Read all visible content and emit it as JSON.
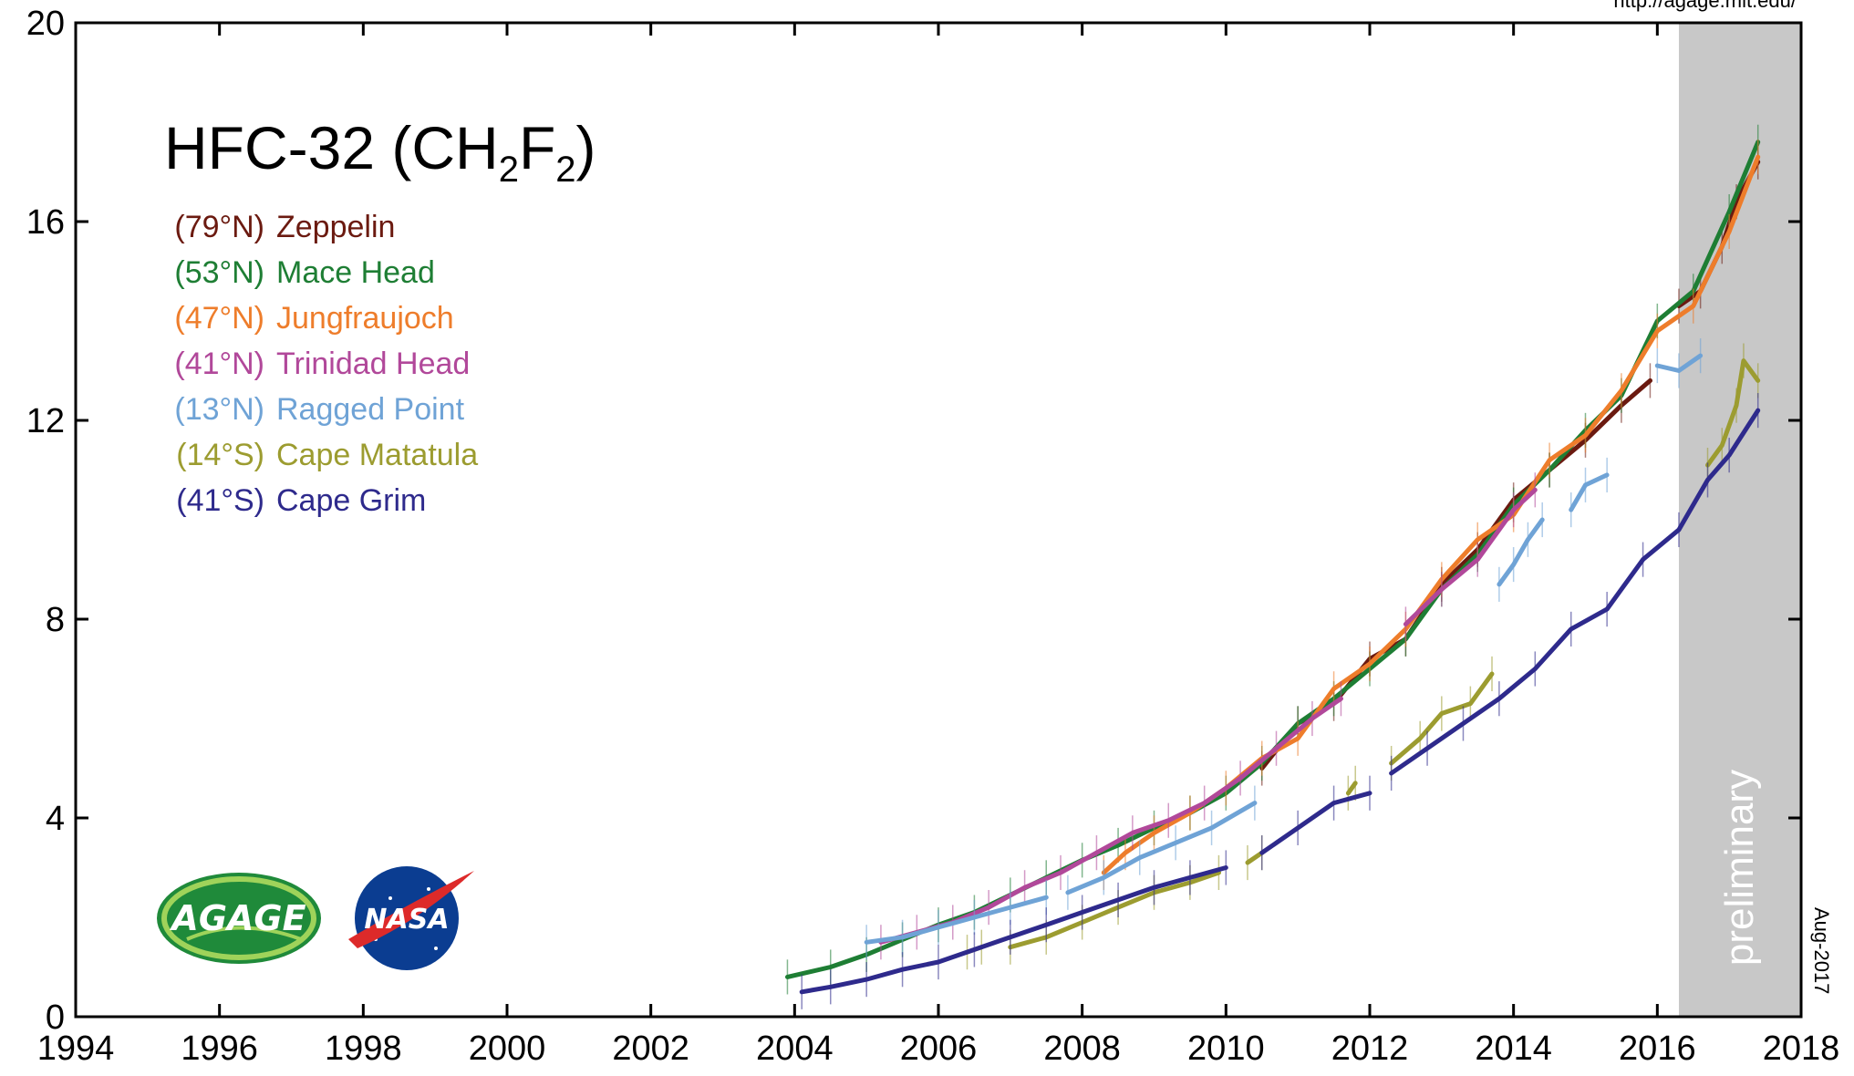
{
  "chart_data": {
    "type": "line",
    "title_main": "HFC-32 (CH",
    "title_sub1": "2",
    "title_mid": "F",
    "title_sub2": "2",
    "title_end": ")",
    "xlabel": "",
    "ylabel": "",
    "xlim": [
      1994,
      2018
    ],
    "ylim": [
      0,
      20
    ],
    "xticks": [
      "1994",
      "1996",
      "1998",
      "2000",
      "2002",
      "2004",
      "2006",
      "2008",
      "2010",
      "2012",
      "2014",
      "2016",
      "2018"
    ],
    "yticks": [
      "0",
      "4",
      "8",
      "12",
      "16",
      "20"
    ],
    "grid": false,
    "preliminary_region": {
      "label": "preliminary",
      "x_start": 2016.3,
      "x_end": 2018
    },
    "url_text": "http://agage.mit.edu/",
    "date_stamp": "Aug-2017",
    "legend_placement": "top-left",
    "series": [
      {
        "lat": "(79°N)",
        "name": "Zeppelin",
        "color": "#6b1a10",
        "points": [
          [
            2010.5,
            5.0
          ],
          [
            2011.0,
            5.9
          ],
          [
            2011.5,
            6.3
          ],
          [
            2012.0,
            7.2
          ],
          [
            2012.5,
            7.6
          ],
          [
            2013.0,
            8.7
          ],
          [
            2013.5,
            9.4
          ],
          [
            2014.0,
            10.4
          ],
          [
            2014.5,
            11.0
          ],
          [
            2015.0,
            11.6
          ],
          [
            2015.5,
            12.3
          ],
          [
            2015.9,
            12.8
          ]
        ]
      },
      {
        "lat": "(79°N)",
        "name": "Zeppelin",
        "color": "#6b1a10",
        "points": [
          [
            2016.3,
            14.3
          ],
          [
            2016.6,
            14.6
          ],
          [
            2016.9,
            15.5
          ],
          [
            2017.1,
            16.4
          ],
          [
            2017.4,
            17.2
          ]
        ]
      },
      {
        "lat": "(53°N)",
        "name": "Mace Head",
        "color": "#1e7e34",
        "points": [
          [
            2003.9,
            0.8
          ],
          [
            2004.5,
            1.0
          ],
          [
            2005.0,
            1.25
          ],
          [
            2005.5,
            1.55
          ],
          [
            2006.0,
            1.85
          ],
          [
            2006.5,
            2.1
          ],
          [
            2007.0,
            2.45
          ],
          [
            2007.5,
            2.8
          ],
          [
            2008.0,
            3.15
          ],
          [
            2008.5,
            3.45
          ],
          [
            2009.0,
            3.8
          ],
          [
            2009.5,
            4.1
          ],
          [
            2010.0,
            4.5
          ],
          [
            2010.5,
            5.1
          ],
          [
            2011.0,
            5.9
          ],
          [
            2011.5,
            6.4
          ],
          [
            2012.0,
            7.0
          ],
          [
            2012.5,
            7.6
          ],
          [
            2013.0,
            8.6
          ],
          [
            2013.5,
            9.3
          ],
          [
            2014.0,
            10.3
          ],
          [
            2014.5,
            11.0
          ],
          [
            2015.0,
            11.8
          ],
          [
            2015.5,
            12.5
          ],
          [
            2016.0,
            14.0
          ],
          [
            2016.5,
            14.6
          ],
          [
            2017.0,
            16.2
          ],
          [
            2017.4,
            17.6
          ]
        ]
      },
      {
        "lat": "(47°N)",
        "name": "Jungfraujoch",
        "color": "#ee7d2b",
        "points": [
          [
            2008.3,
            2.9
          ],
          [
            2008.6,
            3.3
          ],
          [
            2009.0,
            3.7
          ],
          [
            2009.5,
            4.1
          ],
          [
            2010.0,
            4.6
          ],
          [
            2010.5,
            5.2
          ],
          [
            2011.0,
            5.6
          ],
          [
            2011.5,
            6.6
          ],
          [
            2012.0,
            7.1
          ],
          [
            2012.5,
            7.8
          ],
          [
            2013.0,
            8.8
          ],
          [
            2013.5,
            9.6
          ],
          [
            2014.0,
            10.1
          ],
          [
            2014.5,
            11.2
          ],
          [
            2015.0,
            11.7
          ],
          [
            2015.5,
            12.6
          ],
          [
            2016.0,
            13.8
          ],
          [
            2016.5,
            14.3
          ],
          [
            2017.0,
            15.8
          ],
          [
            2017.4,
            17.3
          ]
        ]
      },
      {
        "lat": "(41°N)",
        "name": "Trinidad Head",
        "color": "#b1489a",
        "points": [
          [
            2005.2,
            1.5
          ],
          [
            2005.7,
            1.7
          ],
          [
            2006.2,
            1.9
          ],
          [
            2006.7,
            2.2
          ],
          [
            2007.2,
            2.6
          ],
          [
            2007.7,
            2.9
          ],
          [
            2008.2,
            3.3
          ],
          [
            2008.7,
            3.7
          ],
          [
            2009.2,
            3.95
          ],
          [
            2009.7,
            4.3
          ],
          [
            2010.2,
            4.8
          ],
          [
            2010.7,
            5.4
          ],
          [
            2011.2,
            6.0
          ],
          [
            2011.6,
            6.4
          ]
        ]
      },
      {
        "lat": "(41°N)",
        "name": "Trinidad Head",
        "color": "#b1489a",
        "points": [
          [
            2012.5,
            7.9
          ],
          [
            2013.0,
            8.6
          ],
          [
            2013.5,
            9.2
          ],
          [
            2014.0,
            10.2
          ],
          [
            2014.3,
            10.6
          ]
        ]
      },
      {
        "lat": "(13°N)",
        "name": "Ragged Point",
        "color": "#6fa3d6",
        "points": [
          [
            2005.0,
            1.5
          ],
          [
            2005.5,
            1.6
          ],
          [
            2006.0,
            1.8
          ],
          [
            2006.5,
            2.0
          ],
          [
            2007.0,
            2.2
          ],
          [
            2007.5,
            2.4
          ]
        ]
      },
      {
        "lat": "(13°N)",
        "name": "Ragged Point",
        "color": "#6fa3d6",
        "points": [
          [
            2007.8,
            2.5
          ],
          [
            2008.3,
            2.8
          ],
          [
            2008.8,
            3.2
          ],
          [
            2009.3,
            3.5
          ],
          [
            2009.8,
            3.8
          ],
          [
            2010.4,
            4.3
          ]
        ]
      },
      {
        "lat": "(13°N)",
        "name": "Ragged Point",
        "color": "#6fa3d6",
        "points": [
          [
            2013.8,
            8.7
          ],
          [
            2014.0,
            9.1
          ],
          [
            2014.2,
            9.6
          ],
          [
            2014.4,
            10.0
          ]
        ]
      },
      {
        "lat": "(13°N)",
        "name": "Ragged Point",
        "color": "#6fa3d6",
        "points": [
          [
            2014.8,
            10.2
          ],
          [
            2015.0,
            10.7
          ],
          [
            2015.3,
            10.9
          ]
        ]
      },
      {
        "lat": "(13°N)",
        "name": "Ragged Point",
        "color": "#6fa3d6",
        "points": [
          [
            2016.0,
            13.1
          ],
          [
            2016.3,
            13.0
          ],
          [
            2016.6,
            13.3
          ]
        ]
      },
      {
        "lat": "(14°S)",
        "name": "Cape Matatula",
        "color": "#9c9c30",
        "points": [
          [
            2006.4,
            1.3
          ],
          [
            2006.6,
            1.4
          ]
        ]
      },
      {
        "lat": "(14°S)",
        "name": "Cape Matatula",
        "color": "#9c9c30",
        "points": [
          [
            2007.0,
            1.4
          ],
          [
            2007.5,
            1.6
          ],
          [
            2008.0,
            1.9
          ],
          [
            2008.5,
            2.2
          ],
          [
            2009.0,
            2.5
          ],
          [
            2009.5,
            2.7
          ],
          [
            2009.9,
            2.9
          ]
        ]
      },
      {
        "lat": "(14°S)",
        "name": "Cape Matatula",
        "color": "#9c9c30",
        "points": [
          [
            2010.3,
            3.1
          ],
          [
            2010.5,
            3.3
          ]
        ]
      },
      {
        "lat": "(14°S)",
        "name": "Cape Matatula",
        "color": "#9c9c30",
        "points": [
          [
            2011.7,
            4.5
          ],
          [
            2011.8,
            4.7
          ]
        ]
      },
      {
        "lat": "(14°S)",
        "name": "Cape Matatula",
        "color": "#9c9c30",
        "points": [
          [
            2012.3,
            5.1
          ],
          [
            2012.7,
            5.6
          ],
          [
            2013.0,
            6.1
          ],
          [
            2013.4,
            6.3
          ],
          [
            2013.7,
            6.9
          ]
        ]
      },
      {
        "lat": "(14°S)",
        "name": "Cape Matatula",
        "color": "#9c9c30",
        "points": [
          [
            2016.7,
            11.1
          ],
          [
            2016.9,
            11.5
          ],
          [
            2017.1,
            12.3
          ],
          [
            2017.2,
            13.2
          ],
          [
            2017.4,
            12.8
          ]
        ]
      },
      {
        "lat": "(41°S)",
        "name": "Cape Grim",
        "color": "#2e2a8c",
        "points": [
          [
            2004.1,
            0.5
          ],
          [
            2004.5,
            0.6
          ],
          [
            2005.0,
            0.75
          ],
          [
            2005.5,
            0.95
          ],
          [
            2006.0,
            1.1
          ],
          [
            2006.5,
            1.35
          ],
          [
            2007.0,
            1.6
          ],
          [
            2007.5,
            1.85
          ],
          [
            2008.0,
            2.1
          ],
          [
            2008.5,
            2.35
          ],
          [
            2009.0,
            2.6
          ],
          [
            2009.5,
            2.8
          ],
          [
            2010.0,
            3.0
          ]
        ]
      },
      {
        "lat": "(41°S)",
        "name": "Cape Grim",
        "color": "#2e2a8c",
        "points": [
          [
            2010.5,
            3.3
          ],
          [
            2011.0,
            3.8
          ],
          [
            2011.5,
            4.3
          ],
          [
            2012.0,
            4.5
          ]
        ]
      },
      {
        "lat": "(41°S)",
        "name": "Cape Grim",
        "color": "#2e2a8c",
        "points": [
          [
            2012.3,
            4.9
          ],
          [
            2012.8,
            5.4
          ],
          [
            2013.3,
            5.9
          ],
          [
            2013.8,
            6.4
          ],
          [
            2014.3,
            7.0
          ],
          [
            2014.8,
            7.8
          ],
          [
            2015.3,
            8.2
          ],
          [
            2015.8,
            9.2
          ],
          [
            2016.3,
            9.8
          ],
          [
            2016.7,
            10.8
          ],
          [
            2017.0,
            11.3
          ],
          [
            2017.4,
            12.2
          ]
        ]
      }
    ],
    "legend": [
      {
        "lat": "(79°N)",
        "name": "Zeppelin",
        "color": "#6b1a10"
      },
      {
        "lat": "(53°N)",
        "name": "Mace Head",
        "color": "#1e7e34"
      },
      {
        "lat": "(47°N)",
        "name": "Jungfraujoch",
        "color": "#ee7d2b"
      },
      {
        "lat": "(41°N)",
        "name": "Trinidad Head",
        "color": "#b1489a"
      },
      {
        "lat": "(13°N)",
        "name": "Ragged Point",
        "color": "#6fa3d6"
      },
      {
        "lat": "(14°S)",
        "name": "Cape Matatula",
        "color": "#9c9c30"
      },
      {
        "lat": "(41°S)",
        "name": "Cape Grim",
        "color": "#2e2a8c"
      }
    ]
  },
  "logos": {
    "agage": "AGAGE",
    "nasa": "NASA"
  }
}
